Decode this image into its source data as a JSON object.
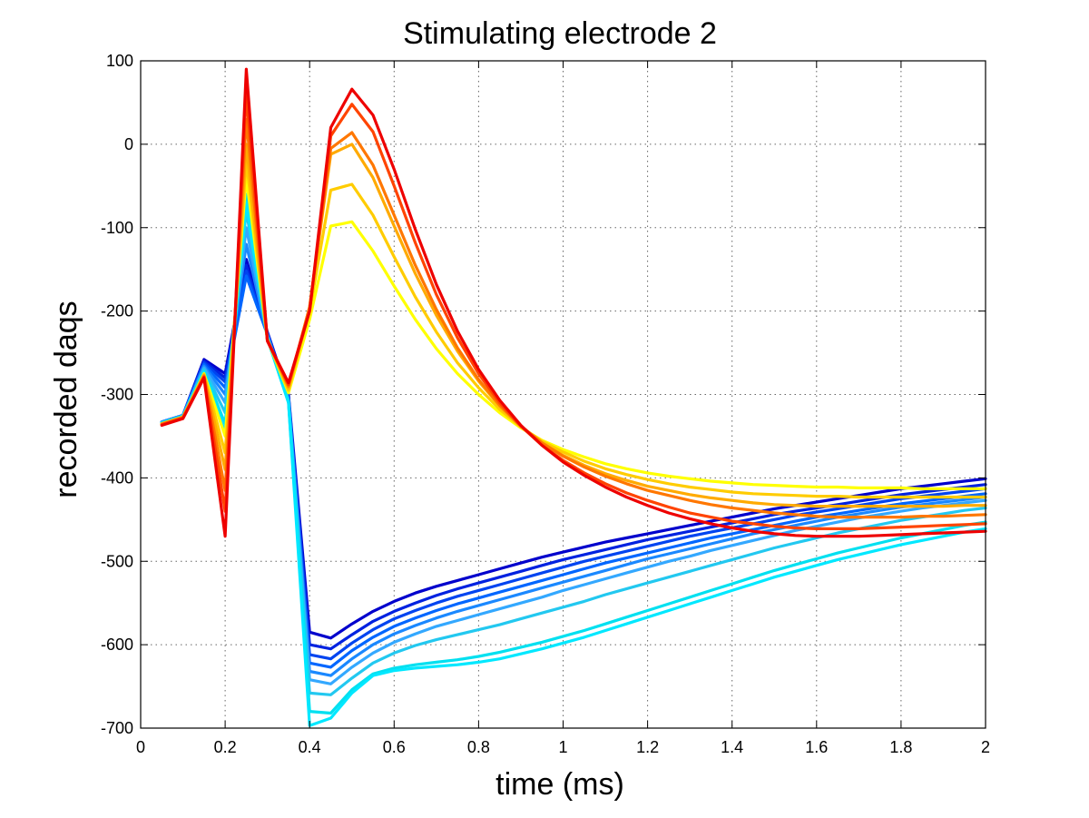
{
  "chart_data": {
    "type": "line",
    "title": "Stimulating electrode 2",
    "xlabel": "time (ms)",
    "ylabel": "recorded daqs",
    "xlim": [
      0,
      2
    ],
    "ylim": [
      -700,
      100
    ],
    "grid": true,
    "xticks": [
      0,
      0.2,
      0.4,
      0.6,
      0.8,
      1,
      1.2,
      1.4,
      1.6,
      1.8,
      2
    ],
    "xtick_labels": [
      "0",
      "0.2",
      "0.4",
      "0.6",
      "0.8",
      "1",
      "1.2",
      "1.4",
      "1.6",
      "1.8",
      "2"
    ],
    "yticks": [
      100,
      0,
      -100,
      -200,
      -300,
      -400,
      -500,
      -600,
      -700
    ],
    "ytick_labels": [
      "100",
      "0",
      "-100",
      "-200",
      "-300",
      "-400",
      "-500",
      "-600",
      "-700"
    ],
    "x": [
      0.05,
      0.1,
      0.15,
      0.2,
      0.25,
      0.3,
      0.35,
      0.4,
      0.45,
      0.5,
      0.55,
      0.6,
      0.65,
      0.7,
      0.75,
      0.8,
      0.85,
      0.9,
      0.95,
      1.0,
      1.05,
      1.1,
      1.15,
      1.2,
      1.25,
      1.3,
      1.35,
      1.4,
      1.45,
      1.5,
      1.55,
      1.6,
      1.65,
      1.7,
      1.75,
      1.8,
      1.85,
      1.9,
      1.95,
      2.0
    ],
    "series": [
      {
        "color": "#0000cc",
        "values": [
          -333,
          -325,
          -258,
          -275,
          -138,
          -225,
          -300,
          -585,
          -592,
          -575,
          -560,
          -548,
          -538,
          -530,
          -523,
          -516,
          -509,
          -502,
          -495,
          -489,
          -483,
          -477,
          -472,
          -467,
          -462,
          -457,
          -452,
          -447,
          -442,
          -437,
          -433,
          -429,
          -425,
          -421,
          -417,
          -413,
          -410,
          -407,
          -404,
          -401
        ]
      },
      {
        "color": "#0022e0",
        "values": [
          -333,
          -325,
          -260,
          -280,
          -145,
          -226,
          -302,
          -600,
          -605,
          -588,
          -572,
          -560,
          -550,
          -541,
          -533,
          -526,
          -519,
          -512,
          -505,
          -498,
          -492,
          -486,
          -480,
          -474,
          -469,
          -464,
          -459,
          -454,
          -449,
          -444,
          -440,
          -436,
          -432,
          -428,
          -424,
          -420,
          -417,
          -414,
          -411,
          -408
        ]
      },
      {
        "color": "#0044f0",
        "values": [
          -333,
          -325,
          -262,
          -285,
          -152,
          -227,
          -304,
          -612,
          -617,
          -598,
          -582,
          -569,
          -559,
          -550,
          -542,
          -535,
          -528,
          -521,
          -514,
          -507,
          -500,
          -494,
          -488,
          -482,
          -476,
          -470,
          -465,
          -460,
          -455,
          -450,
          -445,
          -441,
          -437,
          -433,
          -429,
          -425,
          -422,
          -419,
          -416,
          -413
        ]
      },
      {
        "color": "#0066ff",
        "values": [
          -333,
          -325,
          -264,
          -292,
          -158,
          -228,
          -305,
          -622,
          -627,
          -607,
          -591,
          -578,
          -568,
          -559,
          -551,
          -544,
          -537,
          -530,
          -523,
          -516,
          -509,
          -502,
          -496,
          -490,
          -484,
          -478,
          -472,
          -467,
          -462,
          -457,
          -452,
          -447,
          -443,
          -439,
          -435,
          -431,
          -428,
          -425,
          -422,
          -419
        ]
      },
      {
        "color": "#1a88ff",
        "values": [
          -333,
          -325,
          -266,
          -300,
          -120,
          -229,
          -306,
          -632,
          -637,
          -617,
          -600,
          -587,
          -577,
          -568,
          -560,
          -553,
          -546,
          -539,
          -532,
          -525,
          -518,
          -511,
          -504,
          -497,
          -491,
          -485,
          -479,
          -473,
          -467,
          -462,
          -457,
          -452,
          -447,
          -443,
          -439,
          -435,
          -432,
          -429,
          -426,
          -423
        ]
      },
      {
        "color": "#33a8ff",
        "values": [
          -334,
          -326,
          -268,
          -310,
          -100,
          -230,
          -307,
          -642,
          -647,
          -627,
          -610,
          -597,
          -587,
          -578,
          -571,
          -564,
          -557,
          -550,
          -543,
          -535,
          -528,
          -521,
          -514,
          -507,
          -500,
          -494,
          -487,
          -481,
          -475,
          -469,
          -463,
          -458,
          -453,
          -448,
          -444,
          -440,
          -436,
          -433,
          -430,
          -427
        ]
      },
      {
        "color": "#22c8f0",
        "values": [
          -334,
          -326,
          -270,
          -322,
          -80,
          -231,
          -308,
          -658,
          -660,
          -640,
          -622,
          -610,
          -601,
          -594,
          -588,
          -582,
          -576,
          -569,
          -562,
          -555,
          -548,
          -540,
          -533,
          -526,
          -519,
          -512,
          -505,
          -498,
          -491,
          -484,
          -478,
          -472,
          -466,
          -461,
          -456,
          -451,
          -447,
          -443,
          -439,
          -436
        ]
      },
      {
        "color": "#00e0f0",
        "values": [
          -334,
          -326,
          -272,
          -335,
          -60,
          -232,
          -309,
          -680,
          -682,
          -654,
          -635,
          -628,
          -624,
          -621,
          -618,
          -614,
          -609,
          -603,
          -597,
          -590,
          -583,
          -575,
          -567,
          -559,
          -551,
          -543,
          -535,
          -527,
          -519,
          -511,
          -504,
          -497,
          -490,
          -484,
          -478,
          -472,
          -467,
          -462,
          -457,
          -453
        ]
      },
      {
        "color": "#00e8ff",
        "values": [
          -334,
          -326,
          -274,
          -345,
          -70,
          -233,
          -310,
          -697,
          -688,
          -658,
          -637,
          -631,
          -628,
          -626,
          -624,
          -621,
          -617,
          -611,
          -605,
          -598,
          -591,
          -583,
          -575,
          -567,
          -559,
          -551,
          -543,
          -535,
          -527,
          -519,
          -512,
          -505,
          -498,
          -492,
          -486,
          -480,
          -475,
          -470,
          -465,
          -461
        ]
      },
      {
        "color": "#ffff00",
        "values": [
          -335,
          -327,
          -275,
          -350,
          -40,
          -234,
          -298,
          -210,
          -98,
          -93,
          -128,
          -170,
          -210,
          -245,
          -275,
          -300,
          -322,
          -340,
          -355,
          -366,
          -375,
          -383,
          -389,
          -394,
          -398,
          -401,
          -404,
          -406,
          -408,
          -409,
          -410,
          -411,
          -411,
          -412,
          -412,
          -412,
          -413,
          -413,
          -413,
          -413
        ]
      },
      {
        "color": "#ffcc00",
        "values": [
          -335,
          -327,
          -276,
          -370,
          -20,
          -234,
          -295,
          -200,
          -55,
          -48,
          -85,
          -135,
          -183,
          -225,
          -262,
          -292,
          -318,
          -339,
          -356,
          -369,
          -380,
          -389,
          -396,
          -402,
          -407,
          -411,
          -414,
          -417,
          -419,
          -420,
          -421,
          -422,
          -422,
          -423,
          -423,
          -423,
          -423,
          -423,
          -423,
          -423
        ]
      },
      {
        "color": "#ffaa00",
        "values": [
          -335,
          -327,
          -277,
          -390,
          0,
          -234,
          -292,
          -195,
          -12,
          0,
          -40,
          -98,
          -155,
          -205,
          -248,
          -284,
          -314,
          -338,
          -358,
          -373,
          -385,
          -395,
          -403,
          -410,
          -415,
          -420,
          -424,
          -427,
          -430,
          -432,
          -433,
          -434,
          -434,
          -434,
          -434,
          -434,
          -434,
          -434,
          -433,
          -433
        ]
      },
      {
        "color": "#ff7700",
        "values": [
          -336,
          -328,
          -278,
          -415,
          30,
          -235,
          -290,
          -195,
          -5,
          14,
          -25,
          -85,
          -145,
          -198,
          -244,
          -282,
          -313,
          -338,
          -358,
          -374,
          -387,
          -398,
          -407,
          -415,
          -421,
          -427,
          -432,
          -436,
          -439,
          -442,
          -444,
          -446,
          -447,
          -447,
          -447,
          -447,
          -446,
          -446,
          -445,
          -444
        ]
      },
      {
        "color": "#ff4400",
        "values": [
          -336,
          -328,
          -279,
          -440,
          60,
          -235,
          -288,
          -200,
          10,
          48,
          15,
          -50,
          -118,
          -180,
          -232,
          -275,
          -310,
          -338,
          -361,
          -379,
          -394,
          -407,
          -418,
          -427,
          -435,
          -442,
          -447,
          -452,
          -455,
          -458,
          -460,
          -461,
          -461,
          -461,
          -460,
          -459,
          -458,
          -457,
          -456,
          -455
        ]
      },
      {
        "color": "#ee0000",
        "values": [
          -337,
          -329,
          -280,
          -470,
          90,
          -236,
          -286,
          -200,
          20,
          66,
          35,
          -30,
          -102,
          -168,
          -224,
          -270,
          -307,
          -337,
          -361,
          -381,
          -397,
          -411,
          -423,
          -433,
          -442,
          -449,
          -455,
          -460,
          -464,
          -467,
          -469,
          -470,
          -470,
          -470,
          -469,
          -468,
          -467,
          -466,
          -465,
          -464
        ]
      }
    ]
  }
}
